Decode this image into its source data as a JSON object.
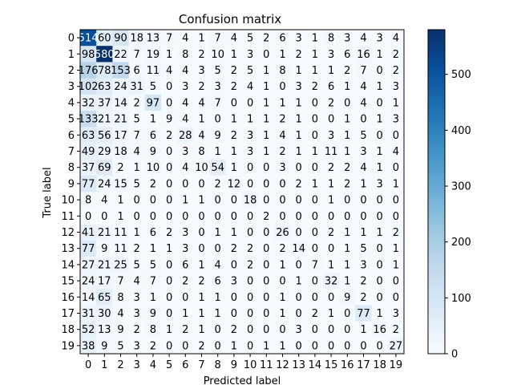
{
  "chart_data": {
    "type": "heatmap",
    "title": "Confusion matrix",
    "xlabel": "Predicted label",
    "ylabel": "True label",
    "x_ticks": [
      "0",
      "1",
      "2",
      "3",
      "4",
      "5",
      "6",
      "7",
      "8",
      "9",
      "10",
      "11",
      "12",
      "13",
      "14",
      "15",
      "16",
      "17",
      "18",
      "19"
    ],
    "y_ticks": [
      "0",
      "1",
      "2",
      "3",
      "4",
      "5",
      "6",
      "7",
      "8",
      "9",
      "10",
      "11",
      "12",
      "13",
      "14",
      "15",
      "16",
      "17",
      "18",
      "19"
    ],
    "colormap": "Blues",
    "vmin": 0,
    "vmax": 580,
    "colorbar_ticks": [
      "0",
      "100",
      "200",
      "300",
      "400",
      "500"
    ],
    "matrix": [
      [
        514,
        60,
        90,
        18,
        13,
        7,
        4,
        1,
        7,
        4,
        5,
        2,
        6,
        3,
        1,
        8,
        3,
        4,
        3,
        4
      ],
      [
        98,
        580,
        22,
        7,
        19,
        1,
        8,
        2,
        10,
        1,
        3,
        0,
        1,
        2,
        1,
        3,
        6,
        16,
        1,
        2
      ],
      [
        176,
        78,
        153,
        6,
        11,
        4,
        4,
        3,
        5,
        2,
        5,
        1,
        8,
        1,
        1,
        1,
        2,
        7,
        0,
        2
      ],
      [
        102,
        63,
        24,
        31,
        5,
        0,
        3,
        2,
        3,
        2,
        4,
        1,
        0,
        3,
        2,
        6,
        1,
        4,
        1,
        3
      ],
      [
        32,
        37,
        14,
        2,
        97,
        0,
        4,
        4,
        7,
        0,
        0,
        1,
        1,
        1,
        0,
        2,
        0,
        4,
        0,
        1
      ],
      [
        133,
        21,
        21,
        5,
        1,
        9,
        4,
        1,
        0,
        1,
        1,
        1,
        2,
        1,
        0,
        0,
        1,
        0,
        1,
        3
      ],
      [
        63,
        56,
        17,
        7,
        6,
        2,
        28,
        4,
        9,
        2,
        3,
        1,
        4,
        1,
        0,
        3,
        1,
        5,
        0,
        0
      ],
      [
        49,
        29,
        18,
        4,
        9,
        0,
        3,
        8,
        1,
        1,
        3,
        1,
        2,
        1,
        1,
        11,
        1,
        3,
        1,
        4
      ],
      [
        37,
        69,
        2,
        1,
        10,
        0,
        4,
        10,
        54,
        1,
        0,
        0,
        3,
        0,
        0,
        2,
        2,
        4,
        1,
        0
      ],
      [
        77,
        24,
        15,
        5,
        2,
        0,
        0,
        0,
        2,
        12,
        0,
        0,
        0,
        2,
        1,
        1,
        2,
        1,
        3,
        1
      ],
      [
        8,
        4,
        1,
        0,
        0,
        0,
        1,
        1,
        0,
        0,
        18,
        0,
        0,
        0,
        0,
        1,
        0,
        0,
        0,
        0
      ],
      [
        0,
        0,
        1,
        0,
        0,
        0,
        0,
        0,
        0,
        0,
        0,
        2,
        0,
        0,
        0,
        0,
        0,
        0,
        0,
        0
      ],
      [
        41,
        21,
        11,
        1,
        6,
        2,
        3,
        0,
        1,
        1,
        0,
        0,
        26,
        0,
        0,
        2,
        1,
        1,
        1,
        2
      ],
      [
        77,
        9,
        11,
        2,
        1,
        1,
        3,
        0,
        0,
        2,
        2,
        0,
        2,
        14,
        0,
        0,
        1,
        5,
        0,
        1
      ],
      [
        27,
        21,
        25,
        5,
        5,
        0,
        6,
        1,
        4,
        0,
        2,
        0,
        1,
        0,
        7,
        1,
        1,
        3,
        0,
        1
      ],
      [
        24,
        17,
        7,
        4,
        7,
        0,
        2,
        2,
        6,
        3,
        0,
        0,
        0,
        1,
        0,
        32,
        1,
        2,
        0,
        0
      ],
      [
        14,
        65,
        8,
        3,
        1,
        0,
        0,
        1,
        1,
        0,
        0,
        0,
        1,
        0,
        0,
        0,
        9,
        2,
        0,
        0
      ],
      [
        31,
        30,
        4,
        3,
        9,
        0,
        1,
        1,
        1,
        0,
        0,
        0,
        1,
        0,
        2,
        1,
        0,
        77,
        1,
        3
      ],
      [
        52,
        13,
        9,
        2,
        8,
        1,
        2,
        1,
        0,
        2,
        0,
        0,
        0,
        3,
        0,
        0,
        0,
        1,
        16,
        2
      ],
      [
        38,
        9,
        5,
        3,
        2,
        0,
        0,
        2,
        0,
        1,
        0,
        1,
        1,
        0,
        0,
        0,
        0,
        0,
        0,
        27
      ]
    ]
  }
}
